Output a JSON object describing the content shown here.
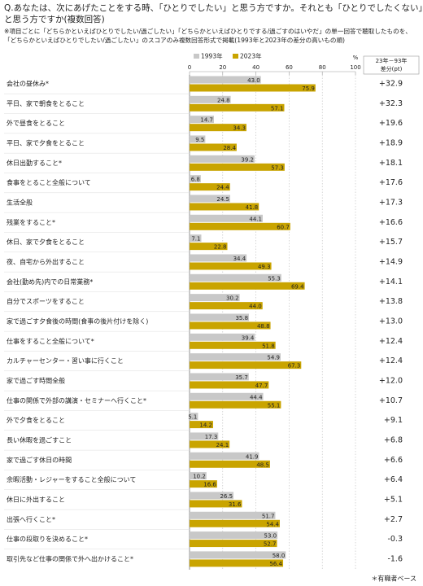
{
  "chart_data": {
    "type": "bar",
    "orientation": "horizontal",
    "title": [
      "Q.あなたは、次にあげたことをする時、「ひとりでしたい」と思う方ですか。それとも「ひとりでしたくない」",
      "と思う方ですか(複数回答)"
    ],
    "note": [
      "※項目ごとに「どちらかといえばひとりでしたい/過ごしたい」「どちらかといえばひとりでする/過ごすのはいやだ」の単一回答で聴取したものを、",
      "「どちらかといえばひとりでしたい/過ごしたい」のスコアのみ複数回答形式で掲載(1993年と2023年の差分の高いもの順)"
    ],
    "x_unit": "%",
    "categories": [
      "会社の昼休み*",
      "平日、家で朝食をとること",
      "外で昼食をとること",
      "平日、家で夕食をとること",
      "休日出勤すること*",
      "食事をとること全般について",
      "生活全般",
      "残業をすること*",
      "休日、家で夕食をとること",
      "夜、自宅から外出すること",
      "会社(勤め先)内での日常業務*",
      "自分でスポーツをすること",
      "家で過ごす夕食後の時間(食事の後片付けを除く)",
      "仕事をすること全般について*",
      "カルチャーセンター・習い事に行くこと",
      "家で過ごす時間全般",
      "仕事の関係で外部の講演・セミナーへ行くこと*",
      "外で夕食をとること",
      "長い休暇を過ごすこと",
      "家で過ごす休日の時間",
      "余暇活動・レジャーをすること全般について",
      "休日に外出すること",
      "出張へ行くこと*",
      "仕事の段取りを決めること*",
      "取引先など仕事の関係で外へ出かけること*"
    ],
    "series": [
      {
        "name": "1993年",
        "color": "#c8c8c8",
        "values": [
          43.0,
          24.8,
          14.7,
          9.5,
          39.2,
          6.8,
          24.5,
          44.1,
          7.1,
          34.4,
          55.3,
          30.2,
          35.8,
          39.4,
          54.9,
          35.7,
          44.4,
          5.1,
          17.3,
          41.9,
          10.2,
          26.5,
          51.7,
          53.0,
          58.0
        ],
        "value_labels": [
          "43.0",
          "24.8",
          "14.7",
          "9.5",
          "39.2",
          "6.8",
          "24.5",
          "44.1",
          "7.1",
          "34.4",
          "55.3",
          "30.2",
          "35.8",
          "39.4",
          "54.9",
          "35.7",
          "44.4",
          "5.1",
          "17.3",
          "41.9",
          "10.2",
          "26.5",
          "51.7",
          "53.0",
          "58.0"
        ]
      },
      {
        "name": "2023年",
        "color": "#c9a400",
        "values": [
          75.9,
          57.1,
          34.3,
          28.4,
          57.3,
          24.4,
          41.8,
          60.7,
          22.8,
          49.3,
          69.4,
          44.0,
          48.8,
          51.8,
          67.3,
          47.7,
          55.1,
          14.2,
          24.1,
          48.5,
          16.6,
          31.6,
          54.4,
          52.7,
          56.4
        ],
        "value_labels": [
          "75.9",
          "57.1",
          "34.3",
          "28.4",
          "57.3",
          "24.4",
          "41.8",
          "60.7",
          "22.8",
          "49.3",
          "69.4",
          "44.0",
          "48.8",
          "51.8",
          "67.3",
          "47.7",
          "55.1",
          "14.2",
          "24.1",
          "48.5",
          "16.6",
          "31.6",
          "54.4",
          "52.7",
          "56.4"
        ]
      }
    ],
    "difference": {
      "header": [
        "23年－93年",
        "差分(pt)"
      ],
      "values": [
        32.9,
        32.3,
        19.6,
        18.9,
        18.1,
        17.6,
        17.3,
        16.6,
        15.7,
        14.9,
        14.1,
        13.8,
        13.0,
        12.4,
        12.4,
        12.0,
        10.7,
        9.1,
        6.8,
        6.6,
        6.4,
        5.1,
        2.7,
        -0.3,
        -1.6
      ],
      "value_labels": [
        "+32.9",
        "+32.3",
        "+19.6",
        "+18.9",
        "+18.1",
        "+17.6",
        "+17.3",
        "+16.6",
        "+15.7",
        "+14.9",
        "+14.1",
        "+13.8",
        "+13.0",
        "+12.4",
        "+12.4",
        "+12.0",
        "+10.7",
        "+9.1",
        "+6.8",
        "+6.6",
        "+6.4",
        "+5.1",
        "+2.7",
        "-0.3",
        "-1.6"
      ],
      "colors": [
        "#e60012",
        "#e60012",
        "#e60012",
        "#e60012",
        "#e60012",
        "#e60012",
        "#e60012",
        "#e60012",
        "#e60012",
        "#e60012",
        "#e60012",
        "#e60012",
        "#e60012",
        "#e60012",
        "#e60012",
        "#e60012",
        "#e60012",
        "#222222",
        "#222222",
        "#222222",
        "#222222",
        "#222222",
        "#222222",
        "#222222",
        "#222222"
      ]
    },
    "xlim": [
      0,
      100
    ],
    "xticks": [
      0,
      20,
      40,
      60,
      80,
      100
    ],
    "grid": true,
    "footnote": "＊有職者ベース"
  }
}
